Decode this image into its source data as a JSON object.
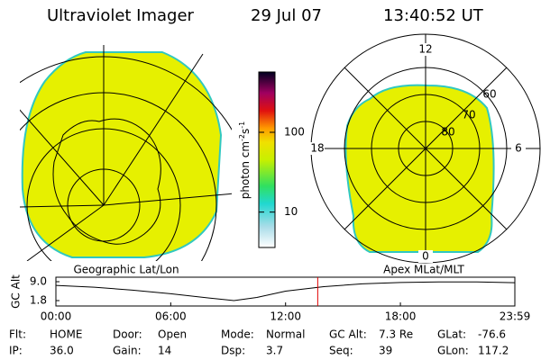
{
  "header": {
    "title": "Ultraviolet Imager",
    "date": "29 Jul 07",
    "time": "13:40:52 UT"
  },
  "colorbar": {
    "label_parts": [
      "photon cm",
      "-2",
      "s",
      "-1"
    ],
    "log": true,
    "lim": [
      3.6,
      570
    ],
    "ticks": [
      10,
      100
    ]
  },
  "left_panel": {
    "label": "Geographic Lat/Lon"
  },
  "right_panel": {
    "label": "Apex MLat/MLT",
    "mlt_labels": [
      "12",
      "6",
      "0",
      "18"
    ],
    "lat_labels": [
      "60",
      "70",
      "80"
    ]
  },
  "altitude_plot": {
    "type": "line",
    "ylabel": "GC Alt",
    "x": [
      0,
      2,
      4,
      6,
      8,
      9.3,
      10.5,
      12,
      14,
      16,
      18,
      20,
      22,
      23.98
    ],
    "values": [
      7.6,
      6.9,
      5.8,
      4.4,
      2.8,
      1.8,
      3.0,
      5.4,
      7.1,
      8.2,
      8.7,
      8.9,
      8.9,
      8.6
    ],
    "xlim": [
      0,
      23.98
    ],
    "ylim": [
      1.8,
      9.0
    ],
    "yticks": [
      {
        "value": 9.0,
        "label": "9.0"
      },
      1.8
    ],
    "xticks": [
      {
        "value": 0,
        "label": "00:00"
      },
      {
        "value": 6,
        "label": "06:00"
      },
      {
        "value": 12,
        "label": "12:00"
      },
      {
        "value": 18,
        "label": "18:00"
      },
      {
        "value": 23.98,
        "label": "23:59"
      }
    ],
    "marker_x": 13.68,
    "marker_color": "#e00000",
    "color": "#000000"
  },
  "info": {
    "rows": [
      [
        {
          "label": "Flt:",
          "value": "HOME"
        },
        {
          "label": "Door:",
          "value": "Open"
        },
        {
          "label": "Mode:",
          "value": "Normal"
        },
        {
          "label": "GC Alt:",
          "value": "7.3 Re"
        },
        {
          "label": "GLat:",
          "value": "-76.6"
        }
      ],
      [
        {
          "label": "IP:",
          "value": "36.0"
        },
        {
          "label": "Gain:",
          "value": "14"
        },
        {
          "label": "Dsp:",
          "value": "3.7"
        },
        {
          "label": "Seq:",
          "value": "39"
        },
        {
          "label": "GLon:",
          "value": "117.2"
        }
      ]
    ]
  }
}
